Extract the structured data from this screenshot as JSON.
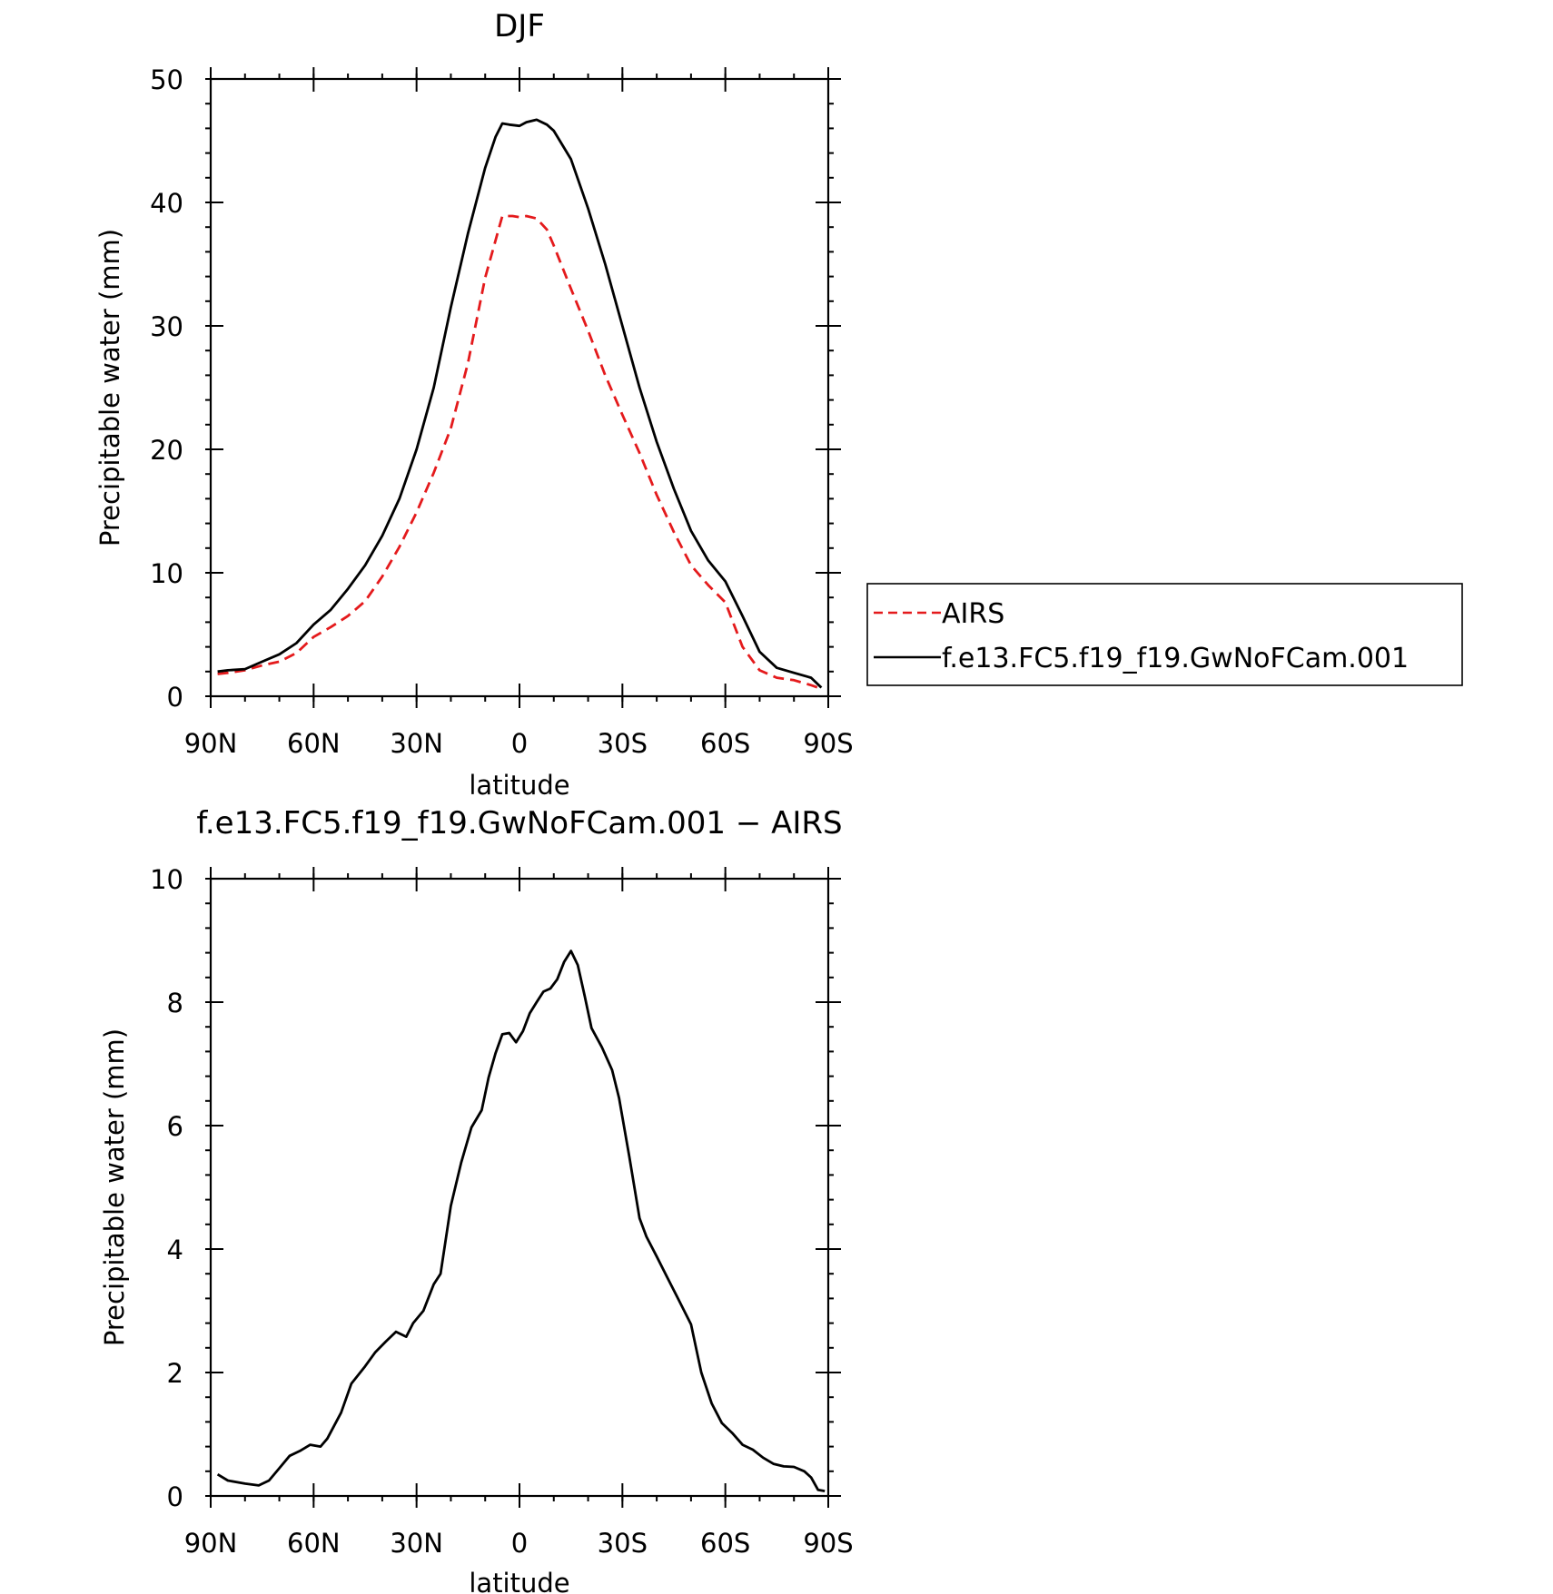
{
  "chart_data": [
    {
      "type": "line",
      "title": "DJF",
      "xlabel": "latitude",
      "ylabel": "Precipitable water (mm)",
      "xlim": [
        90,
        -90
      ],
      "ylim": [
        0,
        50
      ],
      "x_ticks": [
        90,
        60,
        30,
        0,
        -30,
        -60,
        -90
      ],
      "x_tick_labels": [
        "90N",
        "60N",
        "30N",
        "0",
        "30S",
        "60S",
        "90S"
      ],
      "y_ticks": [
        0,
        10,
        20,
        30,
        40,
        50
      ],
      "y_tick_labels": [
        "0",
        "10",
        "20",
        "30",
        "40",
        "50"
      ],
      "grid": false,
      "legend_position": "right, outside plot",
      "series": [
        {
          "name": "AIRS",
          "color": "#e41a1c",
          "dash": "dashed",
          "x": [
            88,
            85,
            80,
            75,
            70,
            65,
            60,
            55,
            50,
            45,
            40,
            35,
            30,
            25,
            20,
            15,
            10,
            5,
            2,
            0,
            -2,
            -5,
            -8,
            -10,
            -15,
            -20,
            -25,
            -30,
            -35,
            -40,
            -45,
            -50,
            -55,
            -60,
            -65,
            -70,
            -75,
            -80,
            -85,
            -88
          ],
          "values": [
            1.8,
            1.9,
            2.1,
            2.5,
            2.8,
            3.5,
            4.8,
            5.6,
            6.5,
            7.7,
            9.7,
            12.1,
            14.9,
            18.1,
            21.7,
            27.0,
            33.9,
            38.9,
            38.9,
            38.8,
            38.9,
            38.7,
            37.8,
            36.5,
            33.0,
            29.6,
            26.0,
            22.8,
            19.7,
            16.3,
            13.3,
            10.6,
            9.0,
            7.6,
            4.0,
            2.1,
            1.5,
            1.3,
            0.9,
            0.6
          ]
        },
        {
          "name": "f.e13.FC5.f19_f19.GwNoFCam.001",
          "color": "#000000",
          "dash": "solid",
          "x": [
            88,
            85,
            80,
            75,
            70,
            65,
            60,
            55,
            50,
            45,
            40,
            35,
            30,
            25,
            20,
            15,
            10,
            7,
            5,
            3,
            0,
            -2,
            -5,
            -8,
            -10,
            -15,
            -20,
            -25,
            -30,
            -35,
            -40,
            -45,
            -50,
            -55,
            -60,
            -65,
            -70,
            -75,
            -80,
            -85,
            -88
          ],
          "values": [
            2.0,
            2.1,
            2.2,
            2.8,
            3.4,
            4.3,
            5.8,
            7.0,
            8.7,
            10.6,
            13.0,
            16.0,
            20.0,
            25.0,
            31.5,
            37.5,
            42.8,
            45.3,
            46.4,
            46.3,
            46.2,
            46.5,
            46.7,
            46.3,
            45.8,
            43.5,
            39.5,
            35.0,
            30.0,
            25.0,
            20.6,
            16.8,
            13.4,
            11.0,
            9.3,
            6.5,
            3.6,
            2.3,
            1.9,
            1.5,
            0.7
          ]
        }
      ]
    },
    {
      "type": "line",
      "title": "f.e13.FC5.f19_f19.GwNoFCam.001 − AIRS",
      "xlabel": "latitude",
      "ylabel": "Precipitable water (mm)",
      "xlim": [
        90,
        -90
      ],
      "ylim": [
        0,
        10
      ],
      "x_ticks": [
        90,
        60,
        30,
        0,
        -30,
        -60,
        -90
      ],
      "x_tick_labels": [
        "90N",
        "60N",
        "30N",
        "0",
        "30S",
        "60S",
        "90S"
      ],
      "y_ticks": [
        0,
        2,
        4,
        6,
        8,
        10
      ],
      "y_tick_labels": [
        "0",
        "2",
        "4",
        "6",
        "8",
        "10"
      ],
      "grid": false,
      "series": [
        {
          "color": "#000000",
          "dash": "solid",
          "x": [
            88,
            85,
            80,
            76,
            73,
            70,
            67,
            64,
            61,
            58,
            56,
            52,
            49,
            45,
            42,
            39,
            36,
            33,
            31,
            28,
            25,
            23,
            20,
            17,
            14,
            11,
            9,
            7,
            5,
            3,
            1,
            -1,
            -3,
            -5,
            -7,
            -9,
            -11,
            -13,
            -15,
            -17,
            -19,
            -21,
            -24,
            -27,
            -29,
            -32,
            -35,
            -37,
            -40,
            -43,
            -46,
            -50,
            -53,
            -56,
            -59,
            -62,
            -65,
            -68,
            -71,
            -74,
            -77,
            -80,
            -83,
            -85,
            -87,
            -89
          ],
          "values": [
            0.35,
            0.25,
            0.2,
            0.17,
            0.25,
            0.45,
            0.65,
            0.73,
            0.83,
            0.8,
            0.93,
            1.35,
            1.82,
            2.1,
            2.33,
            2.5,
            2.66,
            2.58,
            2.8,
            3.0,
            3.43,
            3.6,
            4.7,
            5.4,
            5.97,
            6.25,
            6.78,
            7.17,
            7.48,
            7.5,
            7.35,
            7.53,
            7.82,
            8.0,
            8.17,
            8.22,
            8.37,
            8.65,
            8.83,
            8.6,
            8.1,
            7.58,
            7.27,
            6.9,
            6.45,
            5.5,
            4.5,
            4.2,
            3.88,
            3.55,
            3.22,
            2.78,
            2.0,
            1.5,
            1.18,
            1.02,
            0.83,
            0.75,
            0.62,
            0.52,
            0.48,
            0.47,
            0.4,
            0.3,
            0.1,
            0.08
          ]
        }
      ]
    }
  ]
}
